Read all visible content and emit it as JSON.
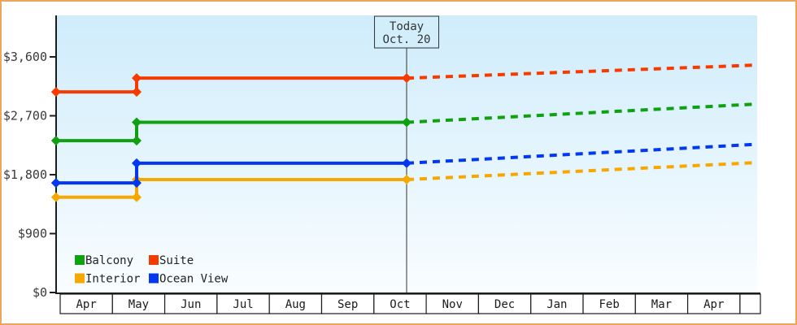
{
  "window": {
    "frame_border_color": "#eda65c",
    "background_color": "#ffffff"
  },
  "chart_data": {
    "type": "line",
    "title": "",
    "description": "Cruise cabin price history (solid) and forecast (dashed) by cabin category",
    "xlabel": "",
    "ylabel": "",
    "y_axis": {
      "ticks": [
        {
          "value": 0,
          "label": "$0"
        },
        {
          "value": 900,
          "label": "$900"
        },
        {
          "value": 1800,
          "label": "$1,800"
        },
        {
          "value": 2700,
          "label": "$2,700"
        },
        {
          "value": 3600,
          "label": "$3,600"
        }
      ],
      "range": [
        0,
        4230
      ],
      "grid": false
    },
    "x_axis": {
      "categories": [
        "Apr",
        "May",
        "Jun",
        "Jul",
        "Aug",
        "Sep",
        "Oct",
        "Nov",
        "Dec",
        "Jan",
        "Feb",
        "Mar",
        "Apr"
      ],
      "trailing_empty_cell": true
    },
    "today_marker": {
      "label_lines": [
        "Today",
        "Oct. 20"
      ],
      "month_x": 6.625
    },
    "timeline": {
      "series_start_month_x": -0.08,
      "price_step_month_x": 1.462,
      "price_step_date": "mid-May",
      "today_month_x": 6.625,
      "forecast_end_month_x": 13.33
    },
    "series": [
      {
        "name": "Interior",
        "color": "#f7a800",
        "initial_price": 1455,
        "price_after_increase": 1725,
        "price_at_today": 1725,
        "forecast_price_end": 1985
      },
      {
        "name": "Ocean View",
        "color": "#0438f0",
        "initial_price": 1675,
        "price_after_increase": 1975,
        "price_at_today": 1975,
        "forecast_price_end": 2265
      },
      {
        "name": "Balcony",
        "color": "#10a010",
        "initial_price": 2320,
        "price_after_increase": 2600,
        "price_at_today": 2600,
        "forecast_price_end": 2880
      },
      {
        "name": "Suite",
        "color": "#f63a00",
        "initial_price": 3065,
        "price_after_increase": 3275,
        "price_at_today": 3275,
        "forecast_price_end": 3475
      }
    ],
    "legend": {
      "position": "bottom-left-inside",
      "rows": [
        [
          {
            "label": "Balcony",
            "color": "#10a010"
          },
          {
            "label": "Suite",
            "color": "#f63a00"
          }
        ],
        [
          {
            "label": "Interior",
            "color": "#f7a800"
          },
          {
            "label": "Ocean View",
            "color": "#0438f0"
          }
        ]
      ]
    },
    "style": {
      "plot_bg_top": "#cfecfb",
      "plot_bg_bottom": "#f9fdff",
      "axis_color": "#1c1c1c",
      "tick_text_color": "#3a3a3a",
      "month_text_color": "#1a1a1a",
      "cell_fill": "#ffffff",
      "cell_border": "#1c1c1c",
      "today_line_color": "#333333",
      "today_box_fill": "#d2eefb",
      "today_box_border": "#333333",
      "today_text_color": "#333333",
      "legend_text_color": "#222222",
      "line_width": 4,
      "forecast_dash": "9 7",
      "marker_shape": "diamond"
    }
  }
}
